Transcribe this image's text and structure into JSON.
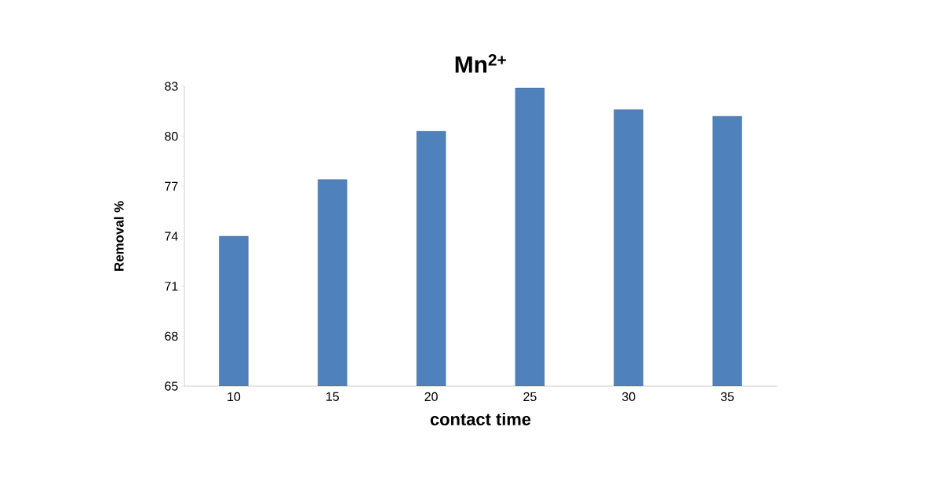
{
  "chart_data": {
    "type": "bar",
    "title": "Mn$^{2+}$",
    "xlabel": "contact time",
    "ylabel": "Removal %",
    "categories": [
      "10",
      "15",
      "20",
      "25",
      "30",
      "35"
    ],
    "values": [
      74.0,
      77.4,
      80.3,
      82.9,
      81.6,
      81.2
    ],
    "color": "#4f81bd",
    "ylim": [
      65,
      83
    ],
    "yticks": [
      65,
      68,
      71,
      74,
      77,
      80,
      83
    ],
    "grid": false
  }
}
